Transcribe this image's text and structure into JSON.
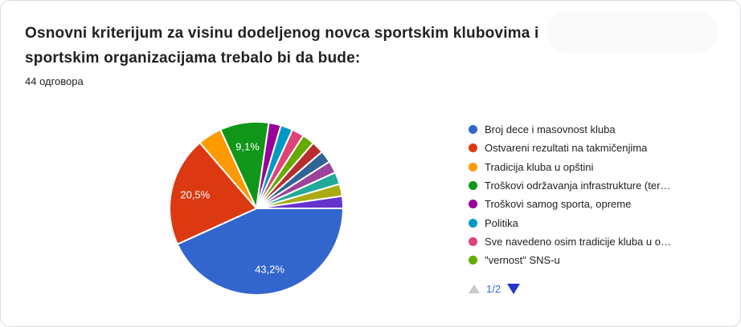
{
  "card": {
    "title": "Osnovni kriterijum za visinu dodeljenog novca sportskim klubovima i sportskim organizacijama trebalo bi da bude:",
    "responses_count": "44 одговора"
  },
  "legend": {
    "items": [
      {
        "label": "Broj dece i masovnost kluba",
        "color": "#3366CC"
      },
      {
        "label": "Ostvareni rezultati na takmičenjima",
        "color": "#DC3912"
      },
      {
        "label": "Tradicija kluba u opštini",
        "color": "#FF9900"
      },
      {
        "label": "Troškovi održavanja infrastrukture (ter…",
        "color": "#109618"
      },
      {
        "label": "Troškovi samog sporta, opreme",
        "color": "#990099"
      },
      {
        "label": "Politika",
        "color": "#0099C6"
      },
      {
        "label": "Sve navedeno osim tradicije kluba u o…",
        "color": "#DD4477"
      },
      {
        "label": "\"vernost\" SNS-u",
        "color": "#66AA00"
      }
    ],
    "pager": {
      "page_label": "1/2",
      "up_icon": "triangle-up-disabled",
      "down_icon": "triangle-down-active",
      "active_color": "#3366cc",
      "arrow_down_color": "#2633cc",
      "arrow_up_disabled_color": "#c9cace"
    }
  },
  "chart_data": {
    "type": "pie",
    "title": "Osnovni kriterijum za visinu dodeljenog novca sportskim klubovima i sportskim organizacijama trebalo bi da bude:",
    "subtitle": "44 одговора",
    "legend_position": "right",
    "rotation": "clockwise",
    "start_angle_deg": 90,
    "slice_label_color": "#ffffff",
    "slices": [
      {
        "label": "Broj dece i masovnost kluba",
        "pct": 43.2,
        "pct_label": "43,2%",
        "show_pct": true,
        "color": "#3366CC"
      },
      {
        "label": "Ostvareni rezultati na takmičenjima",
        "pct": 20.5,
        "pct_label": "20,5%",
        "show_pct": true,
        "color": "#DC3912"
      },
      {
        "label": "Tradicija kluba u opštini",
        "pct": 4.5,
        "pct_label": "",
        "show_pct": false,
        "color": "#FF9900"
      },
      {
        "label": "Troškovi održavanja infrastrukture (ter…",
        "pct": 9.1,
        "pct_label": "9,1%",
        "show_pct": true,
        "color": "#109618"
      },
      {
        "label": "Troškovi samog sporta, opreme",
        "pct": 2.27,
        "pct_label": "",
        "show_pct": false,
        "color": "#990099"
      },
      {
        "label": "Politika",
        "pct": 2.27,
        "pct_label": "",
        "show_pct": false,
        "color": "#0099C6"
      },
      {
        "label": "Sve navedeno osim tradicije kluba u o…",
        "pct": 2.27,
        "pct_label": "",
        "show_pct": false,
        "color": "#DD4477"
      },
      {
        "label": "\"vernost\" SNS-u",
        "pct": 2.27,
        "pct_label": "",
        "show_pct": false,
        "color": "#66AA00"
      },
      {
        "label": "",
        "pct": 2.27,
        "pct_label": "",
        "show_pct": false,
        "color": "#B82E2E"
      },
      {
        "label": "",
        "pct": 2.27,
        "pct_label": "",
        "show_pct": false,
        "color": "#316395"
      },
      {
        "label": "",
        "pct": 2.27,
        "pct_label": "",
        "show_pct": false,
        "color": "#994499"
      },
      {
        "label": "",
        "pct": 2.27,
        "pct_label": "",
        "show_pct": false,
        "color": "#22AA99"
      },
      {
        "label": "",
        "pct": 2.27,
        "pct_label": "",
        "show_pct": false,
        "color": "#AAAA11"
      },
      {
        "label": "",
        "pct": 2.27,
        "pct_label": "",
        "show_pct": false,
        "color": "#6633CC"
      }
    ]
  }
}
